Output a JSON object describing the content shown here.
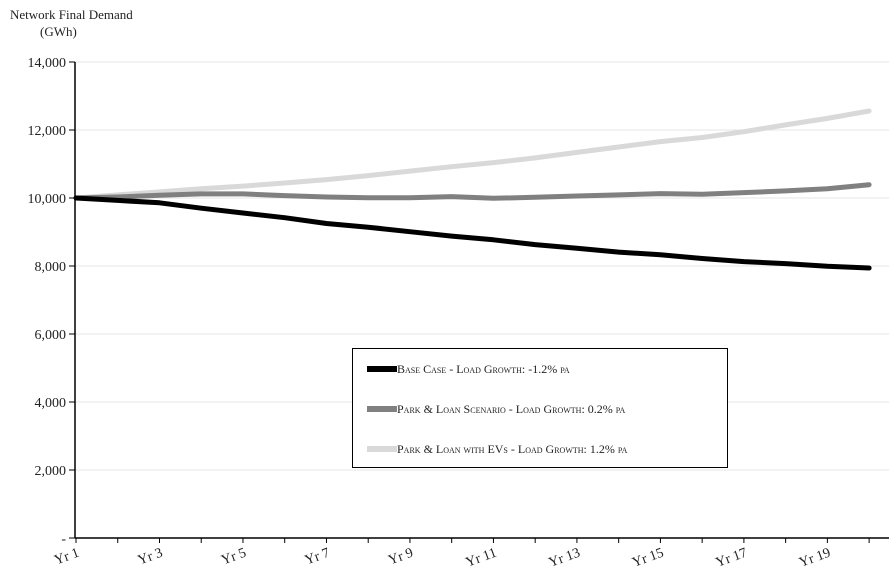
{
  "chart_data": {
    "type": "line",
    "ylabel_line1": "Network Final Demand",
    "ylabel_line2": "(GWh)",
    "ylim": [
      0,
      14000
    ],
    "y_ticks": [
      "-",
      "2,000",
      "4,000",
      "6,000",
      "8,000",
      "10,000",
      "12,000",
      "14,000"
    ],
    "categories": [
      "Yr 1",
      "Yr 2",
      "Yr 3",
      "Yr 4",
      "Yr 5",
      "Yr 6",
      "Yr 7",
      "Yr 8",
      "Yr 9",
      "Yr 10",
      "Yr 11",
      "Yr 12",
      "Yr 13",
      "Yr 14",
      "Yr 15",
      "Yr 16",
      "Yr 17",
      "Yr 18",
      "Yr 19",
      "Yr 20"
    ],
    "x_tick_labels": [
      "Yr 1",
      "",
      "Yr 3",
      "",
      "Yr 5",
      "",
      "Yr 7",
      "",
      "Yr 9",
      "",
      "Yr 11",
      "",
      "Yr 13",
      "",
      "Yr 15",
      "",
      "Yr 17",
      "",
      "Yr 19",
      ""
    ],
    "grid": true,
    "legend_position": "center-right",
    "series": [
      {
        "name": "Base Case - Load Growth: -1.2% pa",
        "color": "#000000",
        "values": [
          10000,
          9930,
          9860,
          9700,
          9560,
          9420,
          9250,
          9140,
          9010,
          8880,
          8770,
          8630,
          8520,
          8410,
          8330,
          8220,
          8130,
          8070,
          7990,
          7940
        ]
      },
      {
        "name": "Park & Loan Scenario - Load Growth: 0.2% pa",
        "color": "#808080",
        "values": [
          10000,
          10030,
          10080,
          10120,
          10120,
          10070,
          10030,
          10010,
          10010,
          10040,
          9990,
          10020,
          10060,
          10090,
          10130,
          10110,
          10160,
          10210,
          10270,
          10390
        ]
      },
      {
        "name": "Park & Loan with EVs - Load Growth: 1.2% pa",
        "color": "#d9d9d9",
        "values": [
          10000,
          10090,
          10180,
          10270,
          10350,
          10440,
          10540,
          10660,
          10790,
          10920,
          11040,
          11180,
          11340,
          11500,
          11660,
          11780,
          11950,
          12150,
          12340,
          12560
        ]
      }
    ]
  }
}
